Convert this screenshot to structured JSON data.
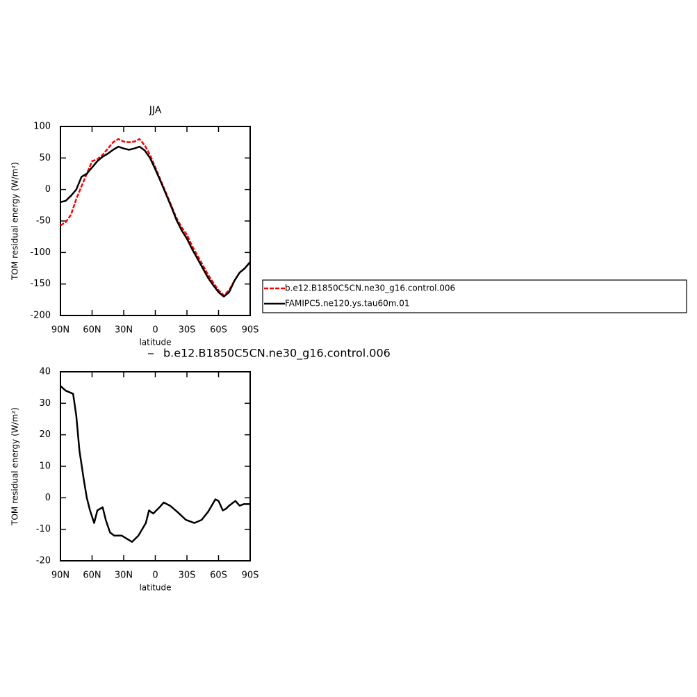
{
  "chart_data": [
    {
      "type": "line",
      "title": "JJA",
      "xlabel": "latitude",
      "ylabel": "TOM residual energy (W/m²)",
      "xlim": [
        90,
        -90
      ],
      "xticks": [
        {
          "value": 90,
          "label": "90N"
        },
        {
          "value": 60,
          "label": "60N"
        },
        {
          "value": 30,
          "label": "30N"
        },
        0,
        {
          "value": -30,
          "label": "30S"
        },
        {
          "value": -60,
          "label": "60S"
        },
        {
          "value": -90,
          "label": "90S"
        }
      ],
      "ylim": [
        -200,
        100
      ],
      "yticks": [
        -200,
        -150,
        -100,
        -50,
        0,
        50,
        100
      ],
      "legend": "right",
      "x": [
        90,
        85,
        80,
        75,
        70,
        65,
        60,
        55,
        50,
        45,
        40,
        35,
        30,
        25,
        20,
        15,
        10,
        5,
        0,
        -5,
        -10,
        -15,
        -20,
        -25,
        -30,
        -35,
        -40,
        -45,
        -50,
        -55,
        -60,
        -65,
        -70,
        -75,
        -80,
        -85,
        -90
      ],
      "series": [
        {
          "name": "b.e12.B1850C5CN.ne30_g16.control.006",
          "color": "#ff0000",
          "dash": true,
          "values": [
            -57,
            -52,
            -40,
            -15,
            5,
            25,
            45,
            48,
            55,
            65,
            75,
            80,
            76,
            75,
            76,
            80,
            70,
            55,
            35,
            15,
            -5,
            -25,
            -45,
            -60,
            -72,
            -90,
            -105,
            -120,
            -135,
            -148,
            -160,
            -168,
            -160,
            -145,
            -132,
            -125,
            -115
          ]
        },
        {
          "name": "FAMIPC5.ne120.ys.tau60m.01",
          "color": "#000000",
          "dash": false,
          "values": [
            -20,
            -18,
            -10,
            0,
            20,
            25,
            35,
            45,
            52,
            57,
            63,
            68,
            65,
            63,
            65,
            68,
            62,
            50,
            32,
            13,
            -7,
            -27,
            -48,
            -65,
            -78,
            -95,
            -110,
            -125,
            -140,
            -152,
            -163,
            -170,
            -163,
            -145,
            -132,
            -125,
            -115
          ]
        }
      ]
    },
    {
      "type": "line",
      "xlabel": "latitude",
      "ylabel": "TOM residual energy (W/m²)",
      "xlim": [
        90,
        -90
      ],
      "xticks": [
        {
          "value": 90,
          "label": "90N"
        },
        {
          "value": 60,
          "label": "60N"
        },
        {
          "value": 30,
          "label": "30N"
        },
        0,
        {
          "value": -30,
          "label": "30S"
        },
        {
          "value": -60,
          "label": "60S"
        },
        {
          "value": -90,
          "label": "90S"
        }
      ],
      "ylim": [
        -20,
        40
      ],
      "yticks": [
        -20,
        -10,
        0,
        10,
        20,
        30,
        40
      ],
      "legend": "top",
      "x": [
        90,
        85,
        78,
        75,
        72,
        68,
        65,
        62,
        58,
        55,
        50,
        47,
        43,
        39,
        32,
        27,
        22,
        16,
        9,
        6,
        2,
        -4,
        -8,
        -14,
        -21,
        -29,
        -37,
        -44,
        -50,
        -57,
        -60,
        -64,
        -67,
        -70,
        -74,
        -76,
        -80,
        -84,
        -87,
        -90
      ],
      "series": [
        {
          "name": "b.e12.B1850C5CN.ne30_g16.control.006",
          "color": "#000000",
          "dash": false,
          "values": [
            35.5,
            34,
            33,
            26,
            15,
            6,
            0,
            -4,
            -8,
            -4,
            -3,
            -7,
            -11,
            -12,
            -12,
            -13,
            -14,
            -12,
            -8,
            -4,
            -5,
            -3,
            -1.5,
            -2.5,
            -4.5,
            -7,
            -8,
            -7,
            -4.5,
            -0.5,
            -1,
            -4,
            -3.5,
            -2.5,
            -1.5,
            -1,
            -2.5,
            -2,
            -2,
            -2
          ]
        }
      ]
    }
  ]
}
